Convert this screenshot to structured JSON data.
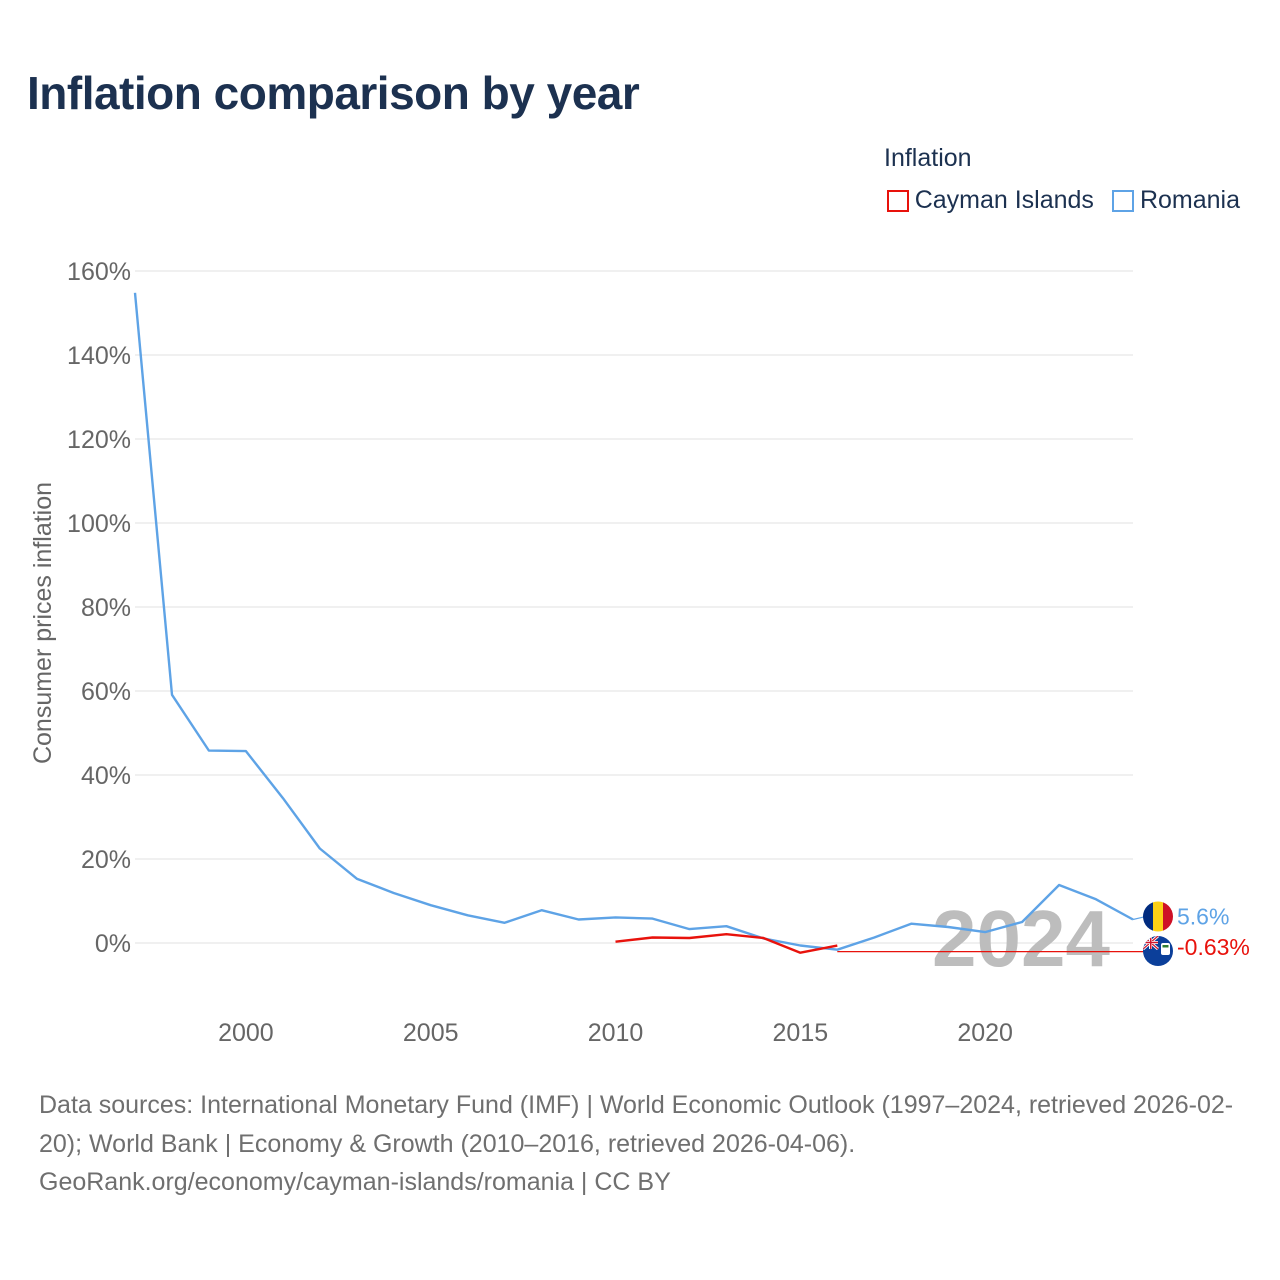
{
  "title": "Inflation comparison by year",
  "legend": {
    "title": "Inflation",
    "items": [
      {
        "name": "Cayman Islands",
        "color": "#e8120c"
      },
      {
        "name": "Romania",
        "color": "#5ea3e6"
      }
    ]
  },
  "chart_data": {
    "type": "line",
    "title": "Inflation comparison by year",
    "xlabel": "",
    "ylabel": "Consumer prices inflation",
    "xlim": [
      1997,
      2024
    ],
    "ylim": [
      -10,
      165
    ],
    "yticks": [
      0,
      20,
      40,
      60,
      80,
      100,
      120,
      140,
      160
    ],
    "ytick_labels": [
      "0%",
      "20%",
      "40%",
      "60%",
      "80%",
      "100%",
      "120%",
      "140%",
      "160%"
    ],
    "xticks": [
      2000,
      2005,
      2010,
      2015,
      2020
    ],
    "xtick_labels": [
      "2000",
      "2005",
      "2010",
      "2015",
      "2020"
    ],
    "grid": true,
    "watermark_year": "2024",
    "series": [
      {
        "name": "Romania",
        "color": "#5ea3e6",
        "x": [
          1997,
          1998,
          1999,
          2000,
          2001,
          2002,
          2003,
          2004,
          2005,
          2006,
          2007,
          2008,
          2009,
          2010,
          2011,
          2012,
          2013,
          2014,
          2015,
          2016,
          2017,
          2018,
          2019,
          2020,
          2021,
          2022,
          2023,
          2024
        ],
        "y": [
          154.8,
          59.1,
          45.8,
          45.7,
          34.5,
          22.5,
          15.3,
          11.9,
          9.0,
          6.6,
          4.8,
          7.8,
          5.6,
          6.1,
          5.8,
          3.3,
          4.0,
          1.1,
          -0.6,
          -1.6,
          1.3,
          4.6,
          3.8,
          2.6,
          5.0,
          13.8,
          10.4,
          5.6
        ],
        "end_label": "5.6%"
      },
      {
        "name": "Cayman Islands",
        "color": "#e8120c",
        "x": [
          2010,
          2011,
          2012,
          2013,
          2014,
          2015,
          2016
        ],
        "y": [
          0.3,
          1.3,
          1.2,
          2.1,
          1.2,
          -2.3,
          -0.63
        ],
        "end_label": "-0.63%"
      }
    ]
  },
  "footer": {
    "line1": "Data sources: International Monetary Fund (IMF) | World Economic Outlook (1997–2024, retrieved 2026-02-20); World Bank | Economy & Growth (2010–2016, retrieved 2026-04-06).",
    "line2": "GeoRank.org/economy/cayman-islands/romania | CC BY"
  }
}
